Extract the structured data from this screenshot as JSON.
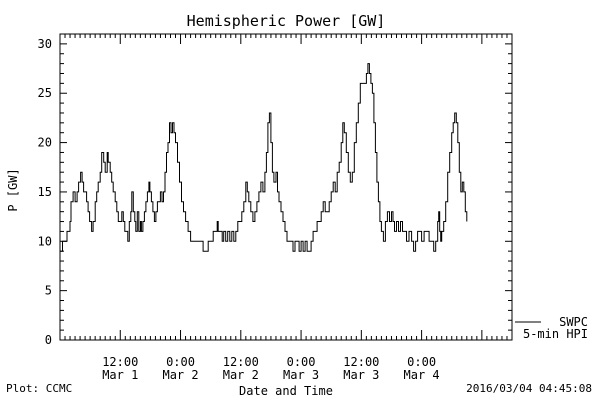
{
  "chart_data": {
    "type": "line",
    "title": "Hemispheric Power [GW]",
    "xlabel": "Date and Time",
    "ylabel": "P [GW]",
    "ylim": [
      0,
      31
    ],
    "yticks": [
      0,
      5,
      10,
      15,
      20,
      25,
      30
    ],
    "xlim_hours": [
      0,
      90
    ],
    "x_ticks": [
      {
        "hours": 12,
        "time": "12:00",
        "date": "Mar 1"
      },
      {
        "hours": 24,
        "time": "0:00",
        "date": "Mar 2"
      },
      {
        "hours": 36,
        "time": "12:00",
        "date": "Mar 2"
      },
      {
        "hours": 48,
        "time": "0:00",
        "date": "Mar 3"
      },
      {
        "hours": 60,
        "time": "12:00",
        "date": "Mar 3"
      },
      {
        "hours": 72,
        "time": "0:00",
        "date": "Mar 4"
      }
    ],
    "grid": false,
    "legend_position": "bottom-right",
    "series": [
      {
        "name": "SWPC 5-min HPI",
        "color": "#000000",
        "points": [
          [
            0.0,
            9
          ],
          [
            0.3,
            9
          ],
          [
            0.5,
            10
          ],
          [
            1.2,
            10
          ],
          [
            1.4,
            11
          ],
          [
            2.0,
            12
          ],
          [
            2.2,
            14
          ],
          [
            2.6,
            15
          ],
          [
            3.0,
            14
          ],
          [
            3.4,
            15
          ],
          [
            3.7,
            16
          ],
          [
            4.1,
            17
          ],
          [
            4.4,
            16
          ],
          [
            4.7,
            15
          ],
          [
            5.0,
            15
          ],
          [
            5.3,
            14
          ],
          [
            5.6,
            13
          ],
          [
            5.9,
            12
          ],
          [
            6.3,
            11
          ],
          [
            6.6,
            12
          ],
          [
            7.0,
            14
          ],
          [
            7.3,
            15
          ],
          [
            7.6,
            16
          ],
          [
            8.0,
            17
          ],
          [
            8.3,
            19
          ],
          [
            8.7,
            18
          ],
          [
            9.0,
            17
          ],
          [
            9.4,
            19
          ],
          [
            9.6,
            18
          ],
          [
            10.0,
            17
          ],
          [
            10.3,
            16
          ],
          [
            10.6,
            15
          ],
          [
            11.0,
            14
          ],
          [
            11.3,
            13
          ],
          [
            11.6,
            12
          ],
          [
            12.0,
            12
          ],
          [
            12.3,
            13
          ],
          [
            12.6,
            12
          ],
          [
            12.9,
            11
          ],
          [
            13.2,
            11
          ],
          [
            13.5,
            10
          ],
          [
            13.8,
            12
          ],
          [
            14.1,
            13
          ],
          [
            14.3,
            15
          ],
          [
            14.6,
            13
          ],
          [
            14.9,
            12
          ],
          [
            15.1,
            11
          ],
          [
            15.4,
            13
          ],
          [
            15.7,
            11
          ],
          [
            16.0,
            12
          ],
          [
            16.2,
            11
          ],
          [
            16.5,
            12
          ],
          [
            16.8,
            13
          ],
          [
            17.1,
            14
          ],
          [
            17.4,
            15
          ],
          [
            17.7,
            16
          ],
          [
            17.9,
            15
          ],
          [
            18.2,
            14
          ],
          [
            18.5,
            13
          ],
          [
            18.8,
            12
          ],
          [
            19.1,
            13
          ],
          [
            19.4,
            14
          ],
          [
            19.7,
            14
          ],
          [
            20.0,
            15
          ],
          [
            20.3,
            14
          ],
          [
            20.6,
            15
          ],
          [
            20.9,
            17
          ],
          [
            21.2,
            19
          ],
          [
            21.5,
            20
          ],
          [
            21.8,
            22
          ],
          [
            22.1,
            21
          ],
          [
            22.4,
            22
          ],
          [
            22.7,
            21
          ],
          [
            23.0,
            20
          ],
          [
            23.4,
            18
          ],
          [
            23.8,
            16
          ],
          [
            24.2,
            14
          ],
          [
            24.6,
            13
          ],
          [
            25.0,
            12
          ],
          [
            25.5,
            11
          ],
          [
            26.0,
            10
          ],
          [
            27.0,
            10
          ],
          [
            28.0,
            10
          ],
          [
            28.5,
            9
          ],
          [
            29.0,
            9
          ],
          [
            29.5,
            10
          ],
          [
            30.0,
            10
          ],
          [
            30.5,
            11
          ],
          [
            31.0,
            11
          ],
          [
            31.3,
            12
          ],
          [
            31.5,
            11
          ],
          [
            32.0,
            11
          ],
          [
            32.3,
            10
          ],
          [
            32.6,
            11
          ],
          [
            33.0,
            10
          ],
          [
            33.4,
            11
          ],
          [
            33.8,
            10
          ],
          [
            34.2,
            11
          ],
          [
            34.6,
            10
          ],
          [
            35.0,
            11
          ],
          [
            35.4,
            12
          ],
          [
            35.8,
            12
          ],
          [
            36.2,
            13
          ],
          [
            36.6,
            14
          ],
          [
            37.0,
            16
          ],
          [
            37.3,
            15
          ],
          [
            37.6,
            14
          ],
          [
            38.0,
            13
          ],
          [
            38.4,
            12
          ],
          [
            38.8,
            13
          ],
          [
            39.2,
            14
          ],
          [
            39.6,
            15
          ],
          [
            40.0,
            16
          ],
          [
            40.4,
            15
          ],
          [
            40.8,
            17
          ],
          [
            41.1,
            19
          ],
          [
            41.4,
            22
          ],
          [
            41.7,
            23
          ],
          [
            42.0,
            20
          ],
          [
            42.3,
            17
          ],
          [
            42.6,
            16
          ],
          [
            43.0,
            17
          ],
          [
            43.3,
            15
          ],
          [
            43.6,
            14
          ],
          [
            44.0,
            13
          ],
          [
            44.4,
            12
          ],
          [
            44.8,
            11
          ],
          [
            45.2,
            10
          ],
          [
            45.6,
            10
          ],
          [
            46.0,
            10
          ],
          [
            46.4,
            9
          ],
          [
            46.8,
            10
          ],
          [
            47.2,
            10
          ],
          [
            47.6,
            9
          ],
          [
            48.0,
            10
          ],
          [
            48.4,
            9
          ],
          [
            48.8,
            10
          ],
          [
            49.2,
            9
          ],
          [
            49.6,
            9
          ],
          [
            50.0,
            10
          ],
          [
            50.4,
            11
          ],
          [
            50.8,
            11
          ],
          [
            51.2,
            12
          ],
          [
            51.6,
            12
          ],
          [
            52.0,
            13
          ],
          [
            52.4,
            14
          ],
          [
            52.8,
            13
          ],
          [
            53.2,
            13
          ],
          [
            53.6,
            14
          ],
          [
            54.0,
            15
          ],
          [
            54.4,
            16
          ],
          [
            54.8,
            15
          ],
          [
            55.2,
            17
          ],
          [
            55.6,
            18
          ],
          [
            56.0,
            20
          ],
          [
            56.3,
            22
          ],
          [
            56.6,
            21
          ],
          [
            57.0,
            19
          ],
          [
            57.4,
            17
          ],
          [
            57.8,
            16
          ],
          [
            58.2,
            17
          ],
          [
            58.6,
            20
          ],
          [
            59.0,
            22
          ],
          [
            59.4,
            24
          ],
          [
            59.8,
            26
          ],
          [
            60.2,
            26
          ],
          [
            60.6,
            26
          ],
          [
            61.0,
            27
          ],
          [
            61.3,
            28
          ],
          [
            61.6,
            27
          ],
          [
            61.9,
            26
          ],
          [
            62.2,
            25
          ],
          [
            62.5,
            22
          ],
          [
            62.8,
            19
          ],
          [
            63.1,
            16
          ],
          [
            63.4,
            14
          ],
          [
            63.7,
            12
          ],
          [
            64.0,
            11
          ],
          [
            64.4,
            10
          ],
          [
            64.8,
            12
          ],
          [
            65.2,
            13
          ],
          [
            65.6,
            12
          ],
          [
            66.0,
            13
          ],
          [
            66.3,
            12
          ],
          [
            66.6,
            11
          ],
          [
            67.0,
            12
          ],
          [
            67.4,
            11
          ],
          [
            67.8,
            12
          ],
          [
            68.2,
            11
          ],
          [
            68.6,
            11
          ],
          [
            69.0,
            10
          ],
          [
            69.5,
            11
          ],
          [
            70.0,
            10
          ],
          [
            70.4,
            9
          ],
          [
            70.8,
            10
          ],
          [
            71.2,
            11
          ],
          [
            71.6,
            11
          ],
          [
            72.0,
            10
          ],
          [
            72.5,
            11
          ],
          [
            73.0,
            11
          ],
          [
            73.5,
            10
          ],
          [
            74.0,
            10
          ],
          [
            74.4,
            9
          ],
          [
            74.8,
            10
          ],
          [
            75.2,
            12
          ],
          [
            75.4,
            13
          ],
          [
            75.6,
            11
          ],
          [
            75.8,
            10
          ],
          [
            76.0,
            11
          ],
          [
            76.4,
            12
          ],
          [
            76.8,
            14
          ],
          [
            77.2,
            17
          ],
          [
            77.6,
            19
          ],
          [
            78.0,
            21
          ],
          [
            78.3,
            22
          ],
          [
            78.6,
            23
          ],
          [
            78.9,
            22
          ],
          [
            79.2,
            20
          ],
          [
            79.5,
            17
          ],
          [
            79.8,
            15
          ],
          [
            80.1,
            16
          ],
          [
            80.4,
            15
          ],
          [
            80.7,
            13
          ],
          [
            81.0,
            12
          ]
        ]
      }
    ]
  },
  "legend": {
    "line1": "SWPC",
    "line2": "5-min HPI"
  },
  "footer": {
    "source": "Plot: CCMC",
    "timestamp": "2016/03/04 04:45:08"
  }
}
